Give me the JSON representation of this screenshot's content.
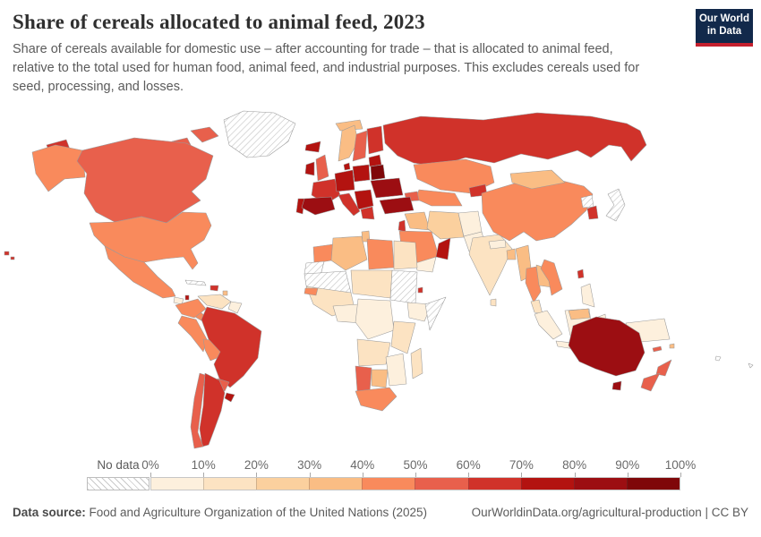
{
  "header": {
    "title": "Share of cereals allocated to animal feed, 2023",
    "subtitle_lines": [
      "Share of cereals available for domestic use – after accounting for trade – that is allocated to animal feed,",
      "relative to the total used for human food, animal feed, and industrial purposes. This excludes cereals used for",
      "seed, processing, and losses."
    ],
    "logo": {
      "line1": "Our World",
      "line2": "in Data",
      "bg": "#12294b",
      "accent": "#c5202e"
    }
  },
  "legend": {
    "no_data_label": "No data",
    "tick_labels": [
      "0%",
      "10%",
      "20%",
      "30%",
      "40%",
      "50%",
      "60%",
      "70%",
      "80%",
      "90%",
      "100%"
    ],
    "colors": [
      "#fdf0dd",
      "#fce3c2",
      "#fbd09e",
      "#fabd84",
      "#f98a5c",
      "#e8604c",
      "#d0322a",
      "#b31310",
      "#9c0e12",
      "#7f0709"
    ]
  },
  "footer": {
    "source_label": "Data source:",
    "source_text": " Food and Agriculture Organization of the United Nations (2025)",
    "credit": "OurWorldinData.org/agricultural-production | CC BY"
  },
  "chart_data": {
    "type": "heatmap",
    "subtype": "world-choropleth",
    "title": "Share of cereals allocated to animal feed, 2023",
    "unit": "% of cereals allocated to animal feed",
    "year": 2023,
    "legend_position": "bottom",
    "no_data_style": "gray diagonal hatch",
    "bins": [
      {
        "range": "0-10%",
        "color": "#fdf0dd"
      },
      {
        "range": "10-20%",
        "color": "#fce3c2"
      },
      {
        "range": "20-30%",
        "color": "#fbd09e"
      },
      {
        "range": "30-40%",
        "color": "#fabd84"
      },
      {
        "range": "40-50%",
        "color": "#f98a5c"
      },
      {
        "range": "50-60%",
        "color": "#e8604c"
      },
      {
        "range": "60-70%",
        "color": "#d0322a"
      },
      {
        "range": "70-80%",
        "color": "#b31310"
      },
      {
        "range": "80-90%",
        "color": "#9c0e12"
      },
      {
        "range": "90-100%",
        "color": "#7f0709"
      }
    ],
    "estimated_values_by_country": {
      "Canada": "50-60%",
      "United States": "40-50%",
      "Mexico": "40-50%",
      "Greenland": "No data",
      "Brazil": "60-70%",
      "Argentina": "60-70%",
      "Chile": "50-60%",
      "Colombia": "40-50%",
      "Peru": "40-50%",
      "Bolivia": "40-50%",
      "Venezuela": "10-20%",
      "Paraguay": "50-60%",
      "Uruguay": "70-80%",
      "Spain": "80-90%",
      "Portugal": "70-80%",
      "France": "60-70%",
      "Germany": "70-80%",
      "Poland": "70-80%",
      "Belarus": "90-100%",
      "Ukraine": "80-90%",
      "United Kingdom": "50-60%",
      "Ireland": "70-80%",
      "Iceland": "70-80%",
      "Norway": "30-40%",
      "Sweden": "50-60%",
      "Finland": "60-70%",
      "Italy": "60-70%",
      "Greece": "60-70%",
      "Russia": "60-70%",
      "Turkey": "80-90%",
      "Kazakhstan": "40-50%",
      "Iran": "20-30%",
      "Iraq": "30-40%",
      "Afghanistan": "0-10%",
      "Pakistan": "0-10%",
      "Saudi Arabia": "40-50%",
      "Oman": "70-80%",
      "Yemen": "0-10%",
      "India": "10-20%",
      "China": "40-50%",
      "Mongolia": "30-40%",
      "South Korea": "60-70%",
      "North Korea": "No data",
      "Japan": "No data",
      "Taiwan": "60-70%",
      "Thailand": "40-50%",
      "Vietnam": "40-50%",
      "Myanmar": "30-40%",
      "Malaysia": "10-20%",
      "Indonesia": "0-10%",
      "Philippines": "0-10%",
      "Papua New Guinea": "0-10%",
      "Australia": "80-90%",
      "New Zealand": "50-60%",
      "Morocco": "40-50%",
      "Algeria": "30-40%",
      "Tunisia": "30-40%",
      "Libya": "40-50%",
      "Egypt": "10-20%",
      "Mauritania": "No data",
      "Mali": "No data",
      "Sudan": "No data",
      "Somalia": "No data",
      "Western Sahara": "No data",
      "Ethiopia": "0-10%",
      "Nigeria": "0-10%",
      "Senegal": "40-50%",
      "Kenya": "10-20%",
      "Angola": "10-20%",
      "Zambia": "10-20%",
      "Namibia": "50-60%",
      "Botswana": "30-40%",
      "South Africa": "40-50%",
      "Mozambique": "0-10%",
      "Madagascar": "10-20%",
      "Djibouti": "60-70%",
      "Cuba": "No data",
      "Dominican Republic": "60-70%",
      "Guatemala": "0-10%",
      "Belize": "70-80%"
    }
  },
  "map": {
    "ocean": "#ffffff",
    "border_color": "#9a9a9a",
    "regions": {
      "greenland": {
        "fill": "hatch",
        "bin": "No data"
      },
      "arctic-a": {
        "fill": "#e8604c",
        "bin": "50-60%"
      },
      "arctic-b": {
        "fill": "#e8604c",
        "bin": "50-60%"
      },
      "alaska": {
        "fill": "#f98a5c",
        "bin": "40-50%"
      },
      "chukotka": {
        "fill": "#d0322a",
        "bin": "60-70%"
      },
      "canada": {
        "fill": "#e8604c",
        "bin": "50-60%"
      },
      "usa": {
        "fill": "#f98a5c",
        "bin": "40-50%"
      },
      "mexico": {
        "fill": "#f98a5c",
        "bin": "40-50%"
      },
      "guatemala": {
        "fill": "#fdf0dd",
        "bin": "0-10%"
      },
      "belize": {
        "fill": "#b31310",
        "bin": "70-80%"
      },
      "central-america": {
        "fill": "#f98a5c",
        "bin": "40-50%"
      },
      "cuba": {
        "fill": "hatch",
        "bin": "No data"
      },
      "hispaniola": {
        "fill": "#d0322a",
        "bin": "60-70%"
      },
      "caribbean": {
        "fill": "#fabd84",
        "bin": "30-40%"
      },
      "hawaii": {
        "fill": "#d0322a",
        "bin": "60-70%"
      },
      "venezuela": {
        "fill": "#fce3c2",
        "bin": "10-20%"
      },
      "guyanas": {
        "fill": "#fdf0dd",
        "bin": "0-10%"
      },
      "colombia": {
        "fill": "#f98a5c",
        "bin": "40-50%"
      },
      "peru": {
        "fill": "#f98a5c",
        "bin": "40-50%"
      },
      "bolivia": {
        "fill": "#f98a5c",
        "bin": "40-50%"
      },
      "brazil": {
        "fill": "#d0322a",
        "bin": "60-70%"
      },
      "paraguay": {
        "fill": "#e8604c",
        "bin": "50-60%"
      },
      "uruguay": {
        "fill": "#b31310",
        "bin": "70-80%"
      },
      "argentina": {
        "fill": "#d0322a",
        "bin": "60-70%"
      },
      "chile": {
        "fill": "#e8604c",
        "bin": "50-60%"
      },
      "iceland": {
        "fill": "#b31310",
        "bin": "70-80%"
      },
      "svalbard": {
        "fill": "#fabd84",
        "bin": "30-40%"
      },
      "norway": {
        "fill": "#fabd84",
        "bin": "30-40%"
      },
      "sweden": {
        "fill": "#e8604c",
        "bin": "50-60%"
      },
      "finland": {
        "fill": "#d0322a",
        "bin": "60-70%"
      },
      "denmark": {
        "fill": "#b31310",
        "bin": "70-80%"
      },
      "baltics": {
        "fill": "#b31310",
        "bin": "70-80%"
      },
      "ireland": {
        "fill": "#b31310",
        "bin": "70-80%"
      },
      "uk": {
        "fill": "#e8604c",
        "bin": "50-60%"
      },
      "france": {
        "fill": "#d0322a",
        "bin": "60-70%"
      },
      "spain": {
        "fill": "#9c0e12",
        "bin": "80-90%"
      },
      "portugal": {
        "fill": "#b31310",
        "bin": "70-80%"
      },
      "germany-central": {
        "fill": "#b31310",
        "bin": "70-80%"
      },
      "poland": {
        "fill": "#b31310",
        "bin": "70-80%"
      },
      "belarus": {
        "fill": "#7f0709",
        "bin": "90-100%"
      },
      "ukraine": {
        "fill": "#9c0e12",
        "bin": "80-90%"
      },
      "balkans": {
        "fill": "#b31310",
        "bin": "70-80%"
      },
      "italy": {
        "fill": "#d0322a",
        "bin": "60-70%"
      },
      "greece": {
        "fill": "#d0322a",
        "bin": "60-70%"
      },
      "russia": {
        "fill": "#d0322a",
        "bin": "60-70%"
      },
      "kazakhstan": {
        "fill": "#f98a5c",
        "bin": "40-50%"
      },
      "central-asia": {
        "fill": "#f98a5c",
        "bin": "40-50%"
      },
      "kyrgyzstan": {
        "fill": "#d0322a",
        "bin": "60-70%"
      },
      "caucasus": {
        "fill": "#e8604c",
        "bin": "50-60%"
      },
      "turkey": {
        "fill": "#9c0e12",
        "bin": "80-90%"
      },
      "syria-iraq": {
        "fill": "#fabd84",
        "bin": "30-40%"
      },
      "jordan-israel": {
        "fill": "#d0322a",
        "bin": "60-70%"
      },
      "iran": {
        "fill": "#fbd09e",
        "bin": "20-30%"
      },
      "afghanistan": {
        "fill": "#fdf0dd",
        "bin": "0-10%"
      },
      "pakistan": {
        "fill": "#fdf0dd",
        "bin": "0-10%"
      },
      "saudi-arabia": {
        "fill": "#f98a5c",
        "bin": "40-50%"
      },
      "oman": {
        "fill": "#b31310",
        "bin": "70-80%"
      },
      "yemen": {
        "fill": "#fdf0dd",
        "bin": "0-10%"
      },
      "morocco": {
        "fill": "#f98a5c",
        "bin": "40-50%"
      },
      "western-sahara": {
        "fill": "hatch",
        "bin": "No data"
      },
      "algeria": {
        "fill": "#fabd84",
        "bin": "30-40%"
      },
      "tunisia": {
        "fill": "#fabd84",
        "bin": "30-40%"
      },
      "libya": {
        "fill": "#f98a5c",
        "bin": "40-50%"
      },
      "egypt": {
        "fill": "#fce3c2",
        "bin": "10-20%"
      },
      "mauritania-mali": {
        "fill": "hatch",
        "bin": "No data"
      },
      "niger-chad": {
        "fill": "#fce3c2",
        "bin": "10-20%"
      },
      "sudan": {
        "fill": "hatch",
        "bin": "No data"
      },
      "djibouti": {
        "fill": "#d0322a",
        "bin": "60-70%"
      },
      "ethiopia": {
        "fill": "#fdf0dd",
        "bin": "0-10%"
      },
      "somalia": {
        "fill": "hatch",
        "bin": "No data"
      },
      "west-africa": {
        "fill": "#fce3c2",
        "bin": "10-20%"
      },
      "senegal": {
        "fill": "#f98a5c",
        "bin": "40-50%"
      },
      "nigeria": {
        "fill": "#fdf0dd",
        "bin": "0-10%"
      },
      "central-africa": {
        "fill": "#fdf0dd",
        "bin": "0-10%"
      },
      "east-africa": {
        "fill": "#fce3c2",
        "bin": "10-20%"
      },
      "angola-zambia": {
        "fill": "#fce3c2",
        "bin": "10-20%"
      },
      "namibia": {
        "fill": "#e8604c",
        "bin": "50-60%"
      },
      "botswana": {
        "fill": "#fabd84",
        "bin": "30-40%"
      },
      "zimbabwe-mozambique": {
        "fill": "#fdf0dd",
        "bin": "0-10%"
      },
      "south-africa": {
        "fill": "#f98a5c",
        "bin": "40-50%"
      },
      "madagascar": {
        "fill": "#fce3c2",
        "bin": "10-20%"
      },
      "india": {
        "fill": "#fce3c2",
        "bin": "10-20%"
      },
      "nepal": {
        "fill": "#fdf0dd",
        "bin": "0-10%"
      },
      "bangladesh": {
        "fill": "#fabd84",
        "bin": "30-40%"
      },
      "sri-lanka": {
        "fill": "#fce3c2",
        "bin": "10-20%"
      },
      "myanmar": {
        "fill": "#fabd84",
        "bin": "30-40%"
      },
      "thailand": {
        "fill": "#f98a5c",
        "bin": "40-50%"
      },
      "laos-cambodia": {
        "fill": "#fabd84",
        "bin": "30-40%"
      },
      "vietnam": {
        "fill": "#f98a5c",
        "bin": "40-50%"
      },
      "malaysia": {
        "fill": "#fce3c2",
        "bin": "10-20%"
      },
      "china": {
        "fill": "#f98a5c",
        "bin": "40-50%"
      },
      "mongolia": {
        "fill": "#fabd84",
        "bin": "30-40%"
      },
      "north-korea": {
        "fill": "hatch",
        "bin": "No data"
      },
      "south-korea": {
        "fill": "#d0322a",
        "bin": "60-70%"
      },
      "japan": {
        "fill": "hatch",
        "bin": "No data"
      },
      "taiwan": {
        "fill": "#d0322a",
        "bin": "60-70%"
      },
      "philippines": {
        "fill": "#fdf0dd",
        "bin": "0-10%"
      },
      "sumatra": {
        "fill": "#fdf0dd",
        "bin": "0-10%"
      },
      "java": {
        "fill": "#fdf0dd",
        "bin": "0-10%"
      },
      "borneo": {
        "fill": "#fdf0dd",
        "bin": "0-10%"
      },
      "borneo-malaysia": {
        "fill": "#fabd84",
        "bin": "30-40%"
      },
      "sulawesi": {
        "fill": "#fdf0dd",
        "bin": "0-10%"
      },
      "papua": {
        "fill": "#fdf0dd",
        "bin": "0-10%"
      },
      "timor": {
        "fill": "#e8604c",
        "bin": "50-60%"
      },
      "australia": {
        "fill": "#9c0e12",
        "bin": "80-90%"
      },
      "tasmania": {
        "fill": "#9c0e12",
        "bin": "80-90%"
      },
      "nz-north": {
        "fill": "#e8604c",
        "bin": "50-60%"
      },
      "nz-south": {
        "fill": "#e8604c",
        "bin": "50-60%"
      },
      "new-caledonia": {
        "fill": "#e8604c",
        "bin": "50-60%"
      },
      "fiji": {
        "fill": "#fabd84",
        "bin": "30-40%"
      },
      "pacific-islands": {
        "fill": "#ffffff",
        "bin": "No data"
      }
    }
  }
}
